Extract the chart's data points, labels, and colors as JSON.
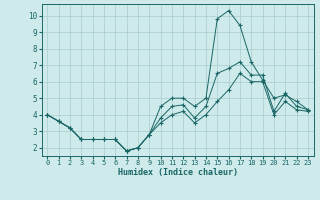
{
  "xlabel": "Humidex (Indice chaleur)",
  "background_color": "#ceeaea",
  "grid_color": "#a8cccc",
  "line_color": "#1a6666",
  "xlim": [
    -0.5,
    23.5
  ],
  "ylim": [
    1.5,
    10.7
  ],
  "xticks": [
    0,
    1,
    2,
    3,
    4,
    5,
    6,
    7,
    8,
    9,
    10,
    11,
    12,
    13,
    14,
    15,
    16,
    17,
    18,
    19,
    20,
    21,
    22,
    23
  ],
  "yticks": [
    2,
    3,
    4,
    5,
    6,
    7,
    8,
    9,
    10
  ],
  "curve_peak_x": [
    0,
    1,
    2,
    3,
    4,
    5,
    6,
    7,
    8,
    9,
    10,
    11,
    12,
    13,
    14,
    15,
    16,
    17,
    18,
    19,
    20,
    21,
    22,
    23
  ],
  "curve_peak_y": [
    4.0,
    3.6,
    3.2,
    2.5,
    2.5,
    2.5,
    2.5,
    1.8,
    2.0,
    2.8,
    4.5,
    5.0,
    5.0,
    4.5,
    5.0,
    9.8,
    10.3,
    9.4,
    7.2,
    6.1,
    5.0,
    5.2,
    4.8,
    4.3
  ],
  "curve_mid_x": [
    0,
    1,
    2,
    3,
    4,
    5,
    6,
    7,
    8,
    9,
    10,
    11,
    12,
    13,
    14,
    15,
    16,
    17,
    18,
    19,
    20,
    21,
    22,
    23
  ],
  "curve_mid_y": [
    4.0,
    3.6,
    3.2,
    2.5,
    2.5,
    2.5,
    2.5,
    1.8,
    2.0,
    2.8,
    3.8,
    4.5,
    4.6,
    3.8,
    4.5,
    6.5,
    6.8,
    7.2,
    6.4,
    6.4,
    4.2,
    5.3,
    4.5,
    4.3
  ],
  "curve_low_x": [
    0,
    1,
    2,
    3,
    4,
    5,
    6,
    7,
    8,
    9,
    10,
    11,
    12,
    13,
    14,
    15,
    16,
    17,
    18,
    19,
    20,
    21,
    22,
    23
  ],
  "curve_low_y": [
    4.0,
    3.6,
    3.2,
    2.5,
    2.5,
    2.5,
    2.5,
    1.8,
    2.0,
    2.8,
    3.5,
    4.0,
    4.2,
    3.5,
    4.0,
    4.8,
    5.5,
    6.5,
    6.0,
    6.0,
    4.0,
    4.8,
    4.3,
    4.2
  ]
}
